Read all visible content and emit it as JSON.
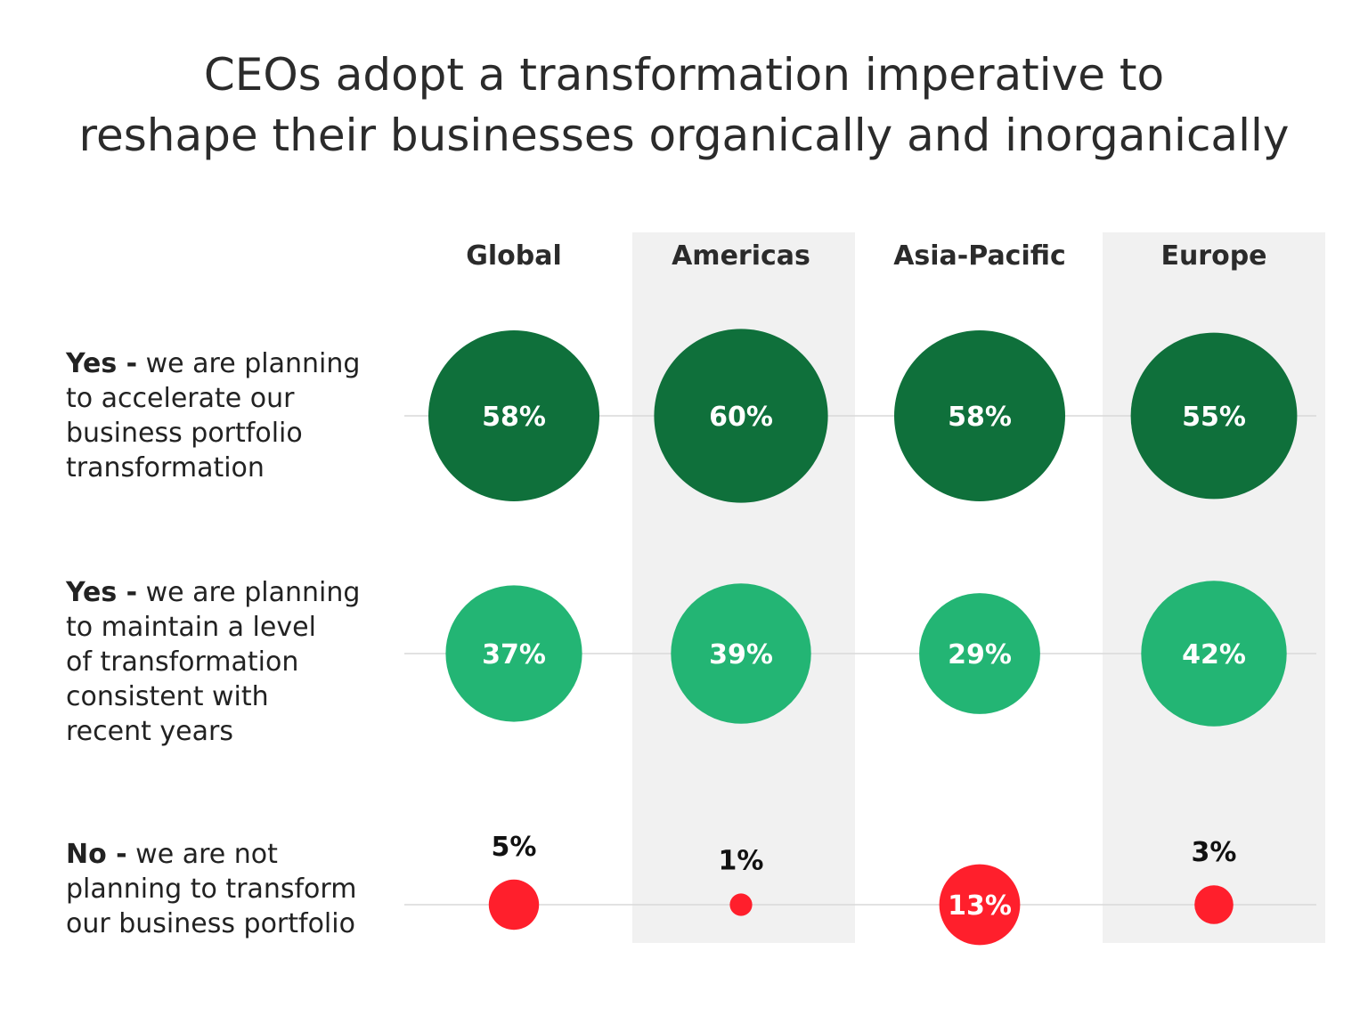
{
  "title": {
    "line1": "CEOs adopt a transformation imperative to",
    "line2": "reshape their businesses organically and inorganically"
  },
  "colors": {
    "accelerate": "#0f703b",
    "maintain": "#23b574",
    "no": "#ff1f2c",
    "band": "#f1f1f1",
    "gridline": "#d9d9d9"
  },
  "chart_data": {
    "type": "bubble",
    "title": "CEOs adopt a transformation imperative to reshape their businesses organically and inorganically",
    "categories": [
      "Global",
      "Americas",
      "Asia-Pacific",
      "Europe"
    ],
    "shaded_columns": [
      "Americas",
      "Europe"
    ],
    "unit": "%",
    "series": [
      {
        "lead": "Yes -",
        "label_lines": [
          "we are planning",
          "to accelerate our",
          "business portfolio",
          "transformation"
        ],
        "values": [
          58,
          60,
          58,
          55
        ],
        "color": "#0f703b"
      },
      {
        "lead": "Yes -",
        "label_lines": [
          "we are planning",
          "to maintain a level",
          "of transformation",
          "consistent with",
          "recent years"
        ],
        "values": [
          37,
          39,
          29,
          42
        ],
        "color": "#23b574"
      },
      {
        "lead": "No -",
        "label_lines": [
          "we are not",
          "planning to transform",
          "our business portfolio"
        ],
        "values": [
          5,
          1,
          13,
          3
        ],
        "color": "#ff1f2c"
      }
    ]
  }
}
